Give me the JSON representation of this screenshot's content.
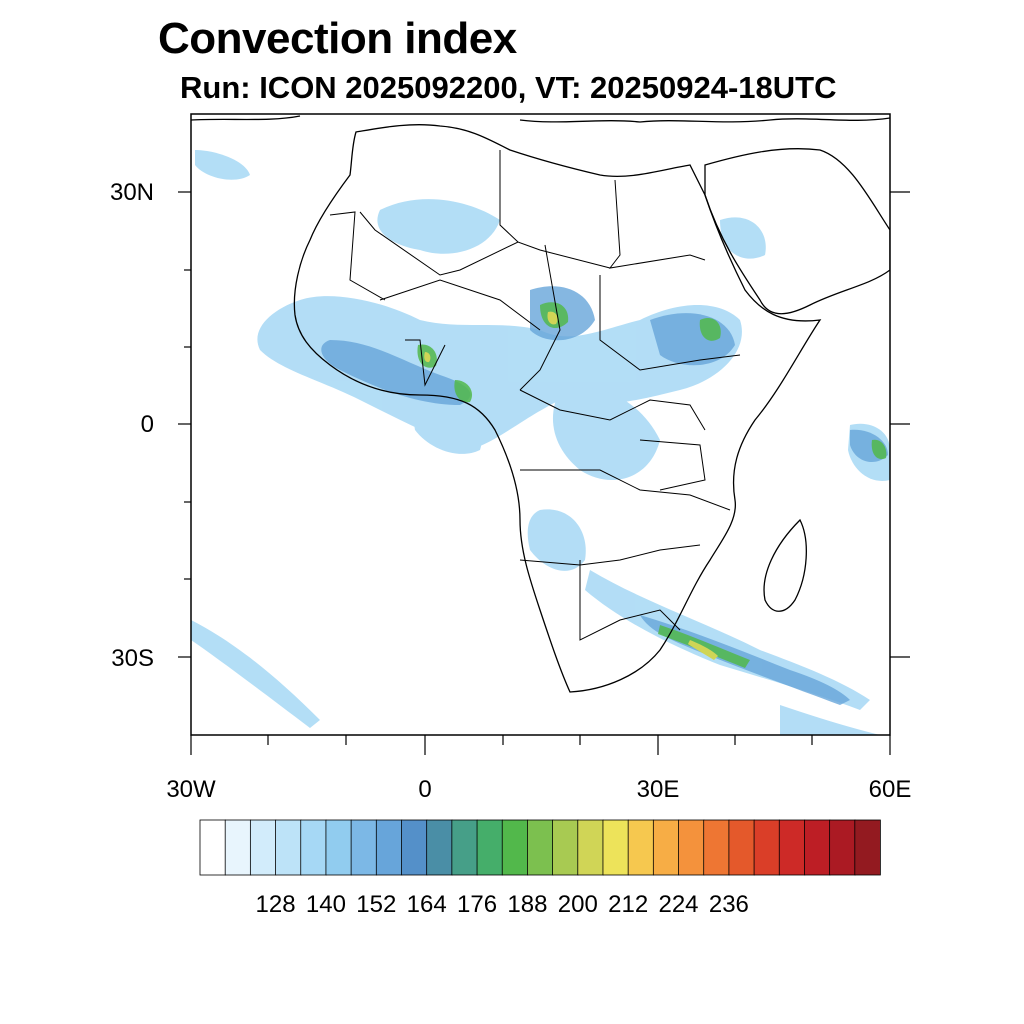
{
  "header": {
    "title": "Convection index",
    "subtitle": "Run: ICON 2025092200,  VT: 20250924-18UTC"
  },
  "axes": {
    "lat_labels": [
      "30N",
      "0",
      "30S"
    ],
    "lon_labels": [
      "30W",
      "0",
      "30E",
      "60E"
    ]
  },
  "colorbar": {
    "labels": [
      "128",
      "140",
      "152",
      "164",
      "176",
      "188",
      "200",
      "212",
      "224",
      "236"
    ],
    "colors": [
      "#ffffff",
      "#e8f5fd",
      "#d2ecfb",
      "#bde3f8",
      "#a6d8f5",
      "#91ccef",
      "#7cb8e6",
      "#67a5da",
      "#5490c9",
      "#4a8ea6",
      "#469f88",
      "#45ae6a",
      "#52b84b",
      "#7cc04f",
      "#a8ca52",
      "#d0d556",
      "#ede35a",
      "#f6c84f",
      "#f7ad45",
      "#f4923c",
      "#ee7633",
      "#e4592b",
      "#da3e28",
      "#cd2a27",
      "#bd1e25",
      "#ab1a23",
      "#931a20"
    ]
  },
  "colors": {
    "land_outline": "#000000",
    "weak": "#a6d8f5",
    "moderate": "#67a5da",
    "strong": "#469f88",
    "intense": "#52b84b",
    "extreme": "#d0d556"
  }
}
